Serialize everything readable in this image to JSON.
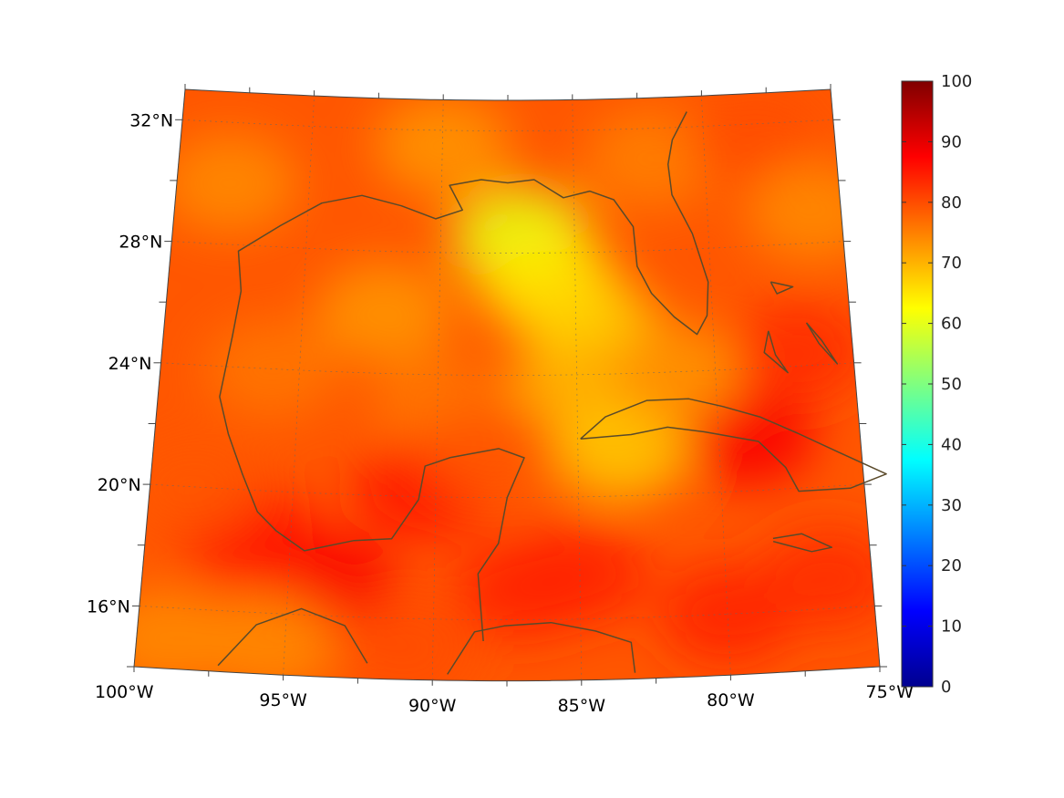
{
  "map": {
    "projection": "conic",
    "region": "Gulf of Mexico and Caribbean",
    "lon_range": [
      -100,
      -75
    ],
    "lat_range": [
      14,
      33
    ],
    "lon_ticks": [
      {
        "value": -100,
        "label": "100°W"
      },
      {
        "value": -95,
        "label": "95°W"
      },
      {
        "value": -90,
        "label": "90°W"
      },
      {
        "value": -85,
        "label": "85°W"
      },
      {
        "value": -80,
        "label": "80°W"
      },
      {
        "value": -75,
        "label": "75°W"
      }
    ],
    "lat_ticks": [
      {
        "value": 16,
        "label": "16°N"
      },
      {
        "value": 20,
        "label": "20°N"
      },
      {
        "value": 24,
        "label": "24°N"
      },
      {
        "value": 28,
        "label": "28°N"
      },
      {
        "value": 32,
        "label": "32°N"
      }
    ],
    "coastline_color": "#5a4a2a",
    "grid": true
  },
  "colorbar": {
    "colormap": "jet",
    "min": 0,
    "max": 100,
    "ticks": [
      "0",
      "10",
      "20",
      "30",
      "40",
      "50",
      "60",
      "70",
      "80",
      "90",
      "100"
    ]
  },
  "chart_data": {
    "type": "heatmap",
    "title": "",
    "xlabel": "",
    "ylabel": "",
    "value_range": [
      0,
      100
    ],
    "blobs": [
      {
        "lon": -92,
        "lat": 26,
        "value": 73
      },
      {
        "lon": -87,
        "lat": 28.5,
        "value": 60
      },
      {
        "lon": -86,
        "lat": 27,
        "value": 65
      },
      {
        "lon": -84.5,
        "lat": 25.5,
        "value": 67
      },
      {
        "lon": -85,
        "lat": 23.5,
        "value": 70
      },
      {
        "lon": -90,
        "lat": 23,
        "value": 76
      },
      {
        "lon": -96,
        "lat": 24,
        "value": 76
      },
      {
        "lon": -98,
        "lat": 30,
        "value": 74
      },
      {
        "lon": -90,
        "lat": 31.5,
        "value": 73
      },
      {
        "lon": -82,
        "lat": 31,
        "value": 75
      },
      {
        "lon": -78,
        "lat": 31.5,
        "value": 80
      },
      {
        "lon": -76,
        "lat": 29,
        "value": 74
      },
      {
        "lon": -90.5,
        "lat": 20.2,
        "value": 85
      },
      {
        "lon": -93.5,
        "lat": 17,
        "value": 88
      },
      {
        "lon": -96.5,
        "lat": 18.5,
        "value": 86
      },
      {
        "lon": -87,
        "lat": 17,
        "value": 84
      },
      {
        "lon": -85,
        "lat": 17.5,
        "value": 84
      },
      {
        "lon": -79,
        "lat": 21.8,
        "value": 88
      },
      {
        "lon": -80,
        "lat": 16,
        "value": 84
      },
      {
        "lon": -76.5,
        "lat": 17,
        "value": 83
      },
      {
        "lon": -83.5,
        "lat": 21.5,
        "value": 68
      },
      {
        "lon": -95.5,
        "lat": 15,
        "value": 74
      },
      {
        "lon": -99,
        "lat": 15,
        "value": 74
      },
      {
        "lon": -91,
        "lat": 15,
        "value": 80
      },
      {
        "lon": -77,
        "lat": 24.5,
        "value": 83
      },
      {
        "lon": -81.5,
        "lat": 24,
        "value": 73
      },
      {
        "lon": -98.5,
        "lat": 20,
        "value": 79
      },
      {
        "lon": -88,
        "lat": 21.5,
        "value": 79
      }
    ],
    "base_value": 79
  }
}
